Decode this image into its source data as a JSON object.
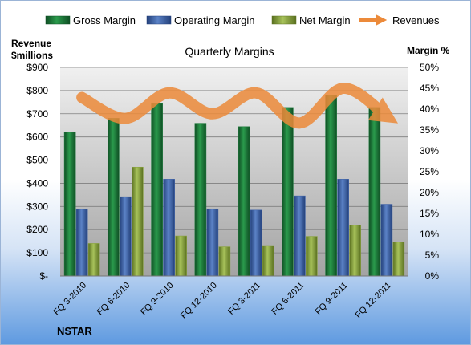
{
  "chart_data": {
    "type": "bar",
    "title": "Quarterly Margins",
    "ylabel_left": "Revenue $millions",
    "ylabel_right": "Margin %",
    "source_label": "NSTAR",
    "categories": [
      "FQ 3-2010",
      "FQ 6-2010",
      "FQ 9-2010",
      "FQ 12-2010",
      "FQ 3-2011",
      "FQ 6-2011",
      "FQ 9-2011",
      "FQ 12-2011"
    ],
    "left_axis": {
      "range": [
        0,
        900
      ],
      "ticks": [
        "$-",
        "$100",
        "$200",
        "$300",
        "$400",
        "$500",
        "$600",
        "$700",
        "$800",
        "$900"
      ]
    },
    "right_axis": {
      "range": [
        0,
        50
      ],
      "ticks": [
        "0%",
        "5%",
        "10%",
        "15%",
        "20%",
        "25%",
        "30%",
        "35%",
        "40%",
        "45%",
        "50%"
      ]
    },
    "series": [
      {
        "name": "Gross Margin",
        "axis": "right",
        "type": "bar",
        "color": "#1e7a3c",
        "values": [
          34.5,
          37.8,
          41.3,
          36.6,
          35.8,
          40.4,
          43.3,
          40.4
        ]
      },
      {
        "name": "Operating Margin",
        "axis": "right",
        "type": "bar",
        "color": "#3f63a8",
        "values": [
          16.0,
          19.0,
          23.2,
          16.1,
          15.8,
          19.2,
          23.2,
          17.2
        ]
      },
      {
        "name": "Net Margin",
        "axis": "right",
        "type": "bar",
        "color": "#8aa33f",
        "values": [
          7.8,
          26.1,
          9.6,
          7.0,
          7.3,
          9.5,
          12.2,
          8.2
        ]
      },
      {
        "name": "Revenues",
        "axis": "left",
        "type": "line",
        "color": "#ec8a3a",
        "values": [
          770,
          680,
          790,
          700,
          790,
          660,
          810,
          690
        ]
      }
    ],
    "grid": true,
    "legend": "top"
  }
}
